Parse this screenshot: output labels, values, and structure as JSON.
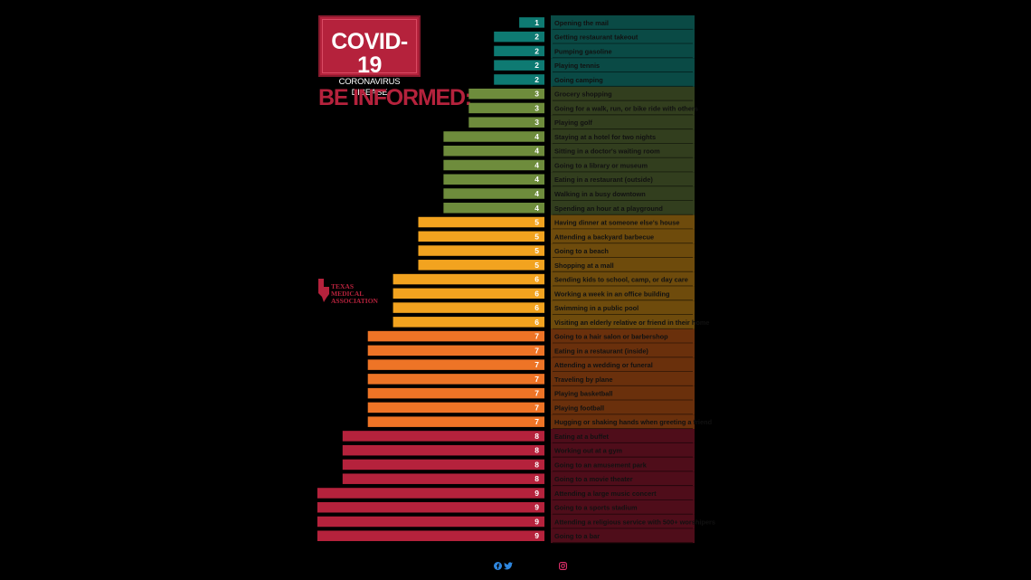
{
  "header": {
    "title": "COVID-19",
    "subtitle": "CORONAVIRUS DISEASE",
    "tagline": "BE INFORMED:"
  },
  "logo": {
    "name": "Texas Medical Association",
    "line1": "TEXAS MEDICAL",
    "line2": "ASSOCIATION"
  },
  "colors": {
    "level_1_2": "#0e7a72",
    "level_3_4": "#6e8c3c",
    "level_5": "#f2a31f",
    "level_6": "#f2a31f",
    "level_7": "#ee7426",
    "level_8_9": "#b5223c"
  },
  "footer": {
    "social_icons": [
      "facebook-icon",
      "twitter-icon",
      "instagram-icon"
    ]
  },
  "chart_data": {
    "type": "bar",
    "orientation": "horizontal",
    "categories": [
      "Opening the mail",
      "Getting restaurant takeout",
      "Pumping gasoline",
      "Playing tennis",
      "Going camping",
      "Grocery shopping",
      "Going for a walk, run, or bike ride with others",
      "Playing golf",
      "Staying at a hotel for two nights",
      "Sitting in a doctor's waiting room",
      "Going to a library or museum",
      "Eating in a restaurant (outside)",
      "Walking in a busy downtown",
      "Spending an hour at a playground",
      "Having dinner at someone else's house",
      "Attending a backyard barbecue",
      "Going to a beach",
      "Shopping at a mall",
      "Sending kids to school, camp, or day care",
      "Working a week in an office building",
      "Swimming in a public pool",
      "Visiting an elderly relative or friend in their home",
      "Going to a hair salon or barbershop",
      "Eating in a restaurant (inside)",
      "Attending a wedding or funeral",
      "Traveling by plane",
      "Playing basketball",
      "Playing football",
      "Hugging or shaking hands when greeting a friend",
      "Eating at a buffet",
      "Working out at a gym",
      "Going to an amusement park",
      "Going to a movie theater",
      "Attending a large music concert",
      "Going to a sports stadium",
      "Attending a religious service with 500+ worshipers",
      "Going to a bar"
    ],
    "values": [
      1,
      2,
      2,
      2,
      2,
      3,
      3,
      3,
      4,
      4,
      4,
      4,
      4,
      4,
      5,
      5,
      5,
      5,
      6,
      6,
      6,
      6,
      7,
      7,
      7,
      7,
      7,
      7,
      7,
      8,
      8,
      8,
      8,
      9,
      9,
      9,
      9
    ],
    "xlim": [
      0,
      9
    ],
    "grid": false,
    "legend": "none"
  }
}
